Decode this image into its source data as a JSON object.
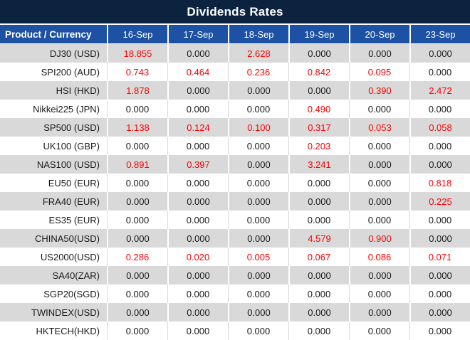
{
  "colors": {
    "title_bg": "#0c2340",
    "header_bg": "#1c51a3",
    "header_text": "#ffffff",
    "row_alt_bg": "#d9d9d9",
    "row_bg": "#ffffff",
    "value_zero": "#1a1a1a",
    "value_nonzero": "#ff0000"
  },
  "chart_data": {
    "type": "table",
    "title": "Dividends Rates",
    "columns": [
      "Product / Currency",
      "16-Sep",
      "17-Sep",
      "18-Sep",
      "19-Sep",
      "20-Sep",
      "23-Sep"
    ],
    "rows": [
      {
        "product": "DJ30 (USD)",
        "values": [
          "18.855",
          "0.000",
          "2.628",
          "0.000",
          "0.000",
          "0.000"
        ]
      },
      {
        "product": "SPI200 (AUD)",
        "values": [
          "0.743",
          "0.464",
          "0.236",
          "0.842",
          "0.095",
          "0.000"
        ]
      },
      {
        "product": "HSI (HKD)",
        "values": [
          "1.878",
          "0.000",
          "0.000",
          "0.000",
          "0.390",
          "2.472"
        ]
      },
      {
        "product": "Nikkei225 (JPN)",
        "values": [
          "0.000",
          "0.000",
          "0.000",
          "0.490",
          "0.000",
          "0.000"
        ]
      },
      {
        "product": "SP500 (USD)",
        "values": [
          "1.138",
          "0.124",
          "0.100",
          "0.317",
          "0.053",
          "0.058"
        ]
      },
      {
        "product": "UK100 (GBP)",
        "values": [
          "0.000",
          "0.000",
          "0.000",
          "0.203",
          "0.000",
          "0.000"
        ]
      },
      {
        "product": "NAS100 (USD)",
        "values": [
          "0.891",
          "0.397",
          "0.000",
          "3.241",
          "0.000",
          "0.000"
        ]
      },
      {
        "product": "EU50 (EUR)",
        "values": [
          "0.000",
          "0.000",
          "0.000",
          "0.000",
          "0.000",
          "0.818"
        ]
      },
      {
        "product": "FRA40 (EUR)",
        "values": [
          "0.000",
          "0.000",
          "0.000",
          "0.000",
          "0.000",
          "0.225"
        ]
      },
      {
        "product": "ES35 (EUR)",
        "values": [
          "0.000",
          "0.000",
          "0.000",
          "0.000",
          "0.000",
          "0.000"
        ]
      },
      {
        "product": "CHINA50(USD)",
        "values": [
          "0.000",
          "0.000",
          "0.000",
          "4.579",
          "0.900",
          "0.000"
        ]
      },
      {
        "product": "US2000(USD)",
        "values": [
          "0.286",
          "0.020",
          "0.005",
          "0.067",
          "0.086",
          "0.071"
        ]
      },
      {
        "product": "SA40(ZAR)",
        "values": [
          "0.000",
          "0.000",
          "0.000",
          "0.000",
          "0.000",
          "0.000"
        ]
      },
      {
        "product": "SGP20(SGD)",
        "values": [
          "0.000",
          "0.000",
          "0.000",
          "0.000",
          "0.000",
          "0.000"
        ]
      },
      {
        "product": "TWINDEX(USD)",
        "values": [
          "0.000",
          "0.000",
          "0.000",
          "0.000",
          "0.000",
          "0.000"
        ]
      },
      {
        "product": "HKTECH(HKD)",
        "values": [
          "0.000",
          "0.000",
          "0.000",
          "0.000",
          "0.000",
          "0.000"
        ]
      }
    ]
  }
}
